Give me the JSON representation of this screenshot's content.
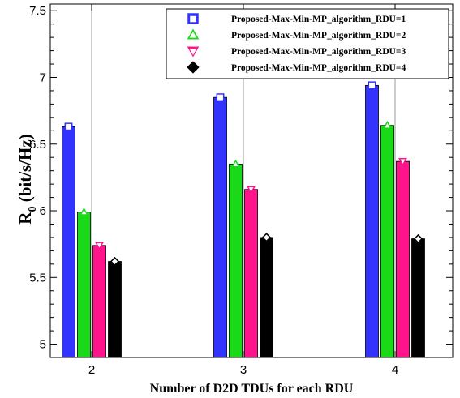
{
  "chart_data": {
    "type": "bar",
    "categories": [
      "2",
      "3",
      "4"
    ],
    "series": [
      {
        "name": "Proposed-Max-Min-MP_algorithm_RDU=1",
        "values": [
          6.63,
          6.85,
          6.94
        ],
        "color": "#3333ff",
        "marker": "square"
      },
      {
        "name": "Proposed-Max-Min-MP_algorithm_RDU=2",
        "values": [
          5.99,
          6.35,
          6.64
        ],
        "color": "#19d919",
        "marker": "triangle-up"
      },
      {
        "name": "Proposed-Max-Min-MP_algorithm_RDU=3",
        "values": [
          5.74,
          6.16,
          6.37
        ],
        "color": "#ff148c",
        "marker": "triangle-down"
      },
      {
        "name": "Proposed-Max-Min-MP_algorithm_RDU=4",
        "values": [
          5.62,
          5.8,
          5.79
        ],
        "color": "#000000",
        "marker": "diamond"
      }
    ],
    "xlabel": "Number of D2D TDUs for each RDU",
    "ylabel_main": "R",
    "ylabel_sub": "0",
    "ylabel_rest": " (bit/s/Hz)",
    "ylim": [
      4.9,
      7.55
    ],
    "yticks": [
      "5",
      "5.5",
      "6",
      "6.5",
      "7",
      "7.5"
    ],
    "grid": "vertical at categories",
    "legend_position": "top-right"
  }
}
